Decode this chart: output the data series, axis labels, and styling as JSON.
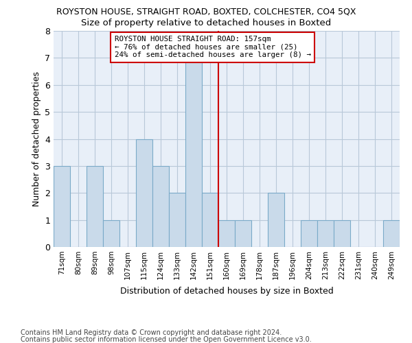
{
  "title": "ROYSTON HOUSE, STRAIGHT ROAD, BOXTED, COLCHESTER, CO4 5QX",
  "subtitle": "Size of property relative to detached houses in Boxted",
  "xlabel": "Distribution of detached houses by size in Boxted",
  "ylabel": "Number of detached properties",
  "categories": [
    "71sqm",
    "80sqm",
    "89sqm",
    "98sqm",
    "107sqm",
    "115sqm",
    "124sqm",
    "133sqm",
    "142sqm",
    "151sqm",
    "160sqm",
    "169sqm",
    "178sqm",
    "187sqm",
    "196sqm",
    "204sqm",
    "213sqm",
    "222sqm",
    "231sqm",
    "240sqm",
    "249sqm"
  ],
  "values": [
    3,
    0,
    3,
    1,
    0,
    4,
    3,
    2,
    7,
    2,
    1,
    1,
    0,
    2,
    0,
    1,
    1,
    1,
    0,
    0,
    1
  ],
  "bar_color": "#c9daea",
  "bar_edge_color": "#7aaac8",
  "grid_color": "#b8c8d8",
  "background_color": "#e8eff8",
  "vline_index": 9.5,
  "annotation_text": "ROYSTON HOUSE STRAIGHT ROAD: 157sqm\n← 76% of detached houses are smaller (25)\n24% of semi-detached houses are larger (8) →",
  "annotation_box_color": "#ffffff",
  "annotation_edge_color": "#cc0000",
  "vline_color": "#cc0000",
  "ylim": [
    0,
    8
  ],
  "yticks": [
    0,
    1,
    2,
    3,
    4,
    5,
    6,
    7,
    8
  ],
  "footer_line1": "Contains HM Land Registry data © Crown copyright and database right 2024.",
  "footer_line2": "Contains public sector information licensed under the Open Government Licence v3.0."
}
